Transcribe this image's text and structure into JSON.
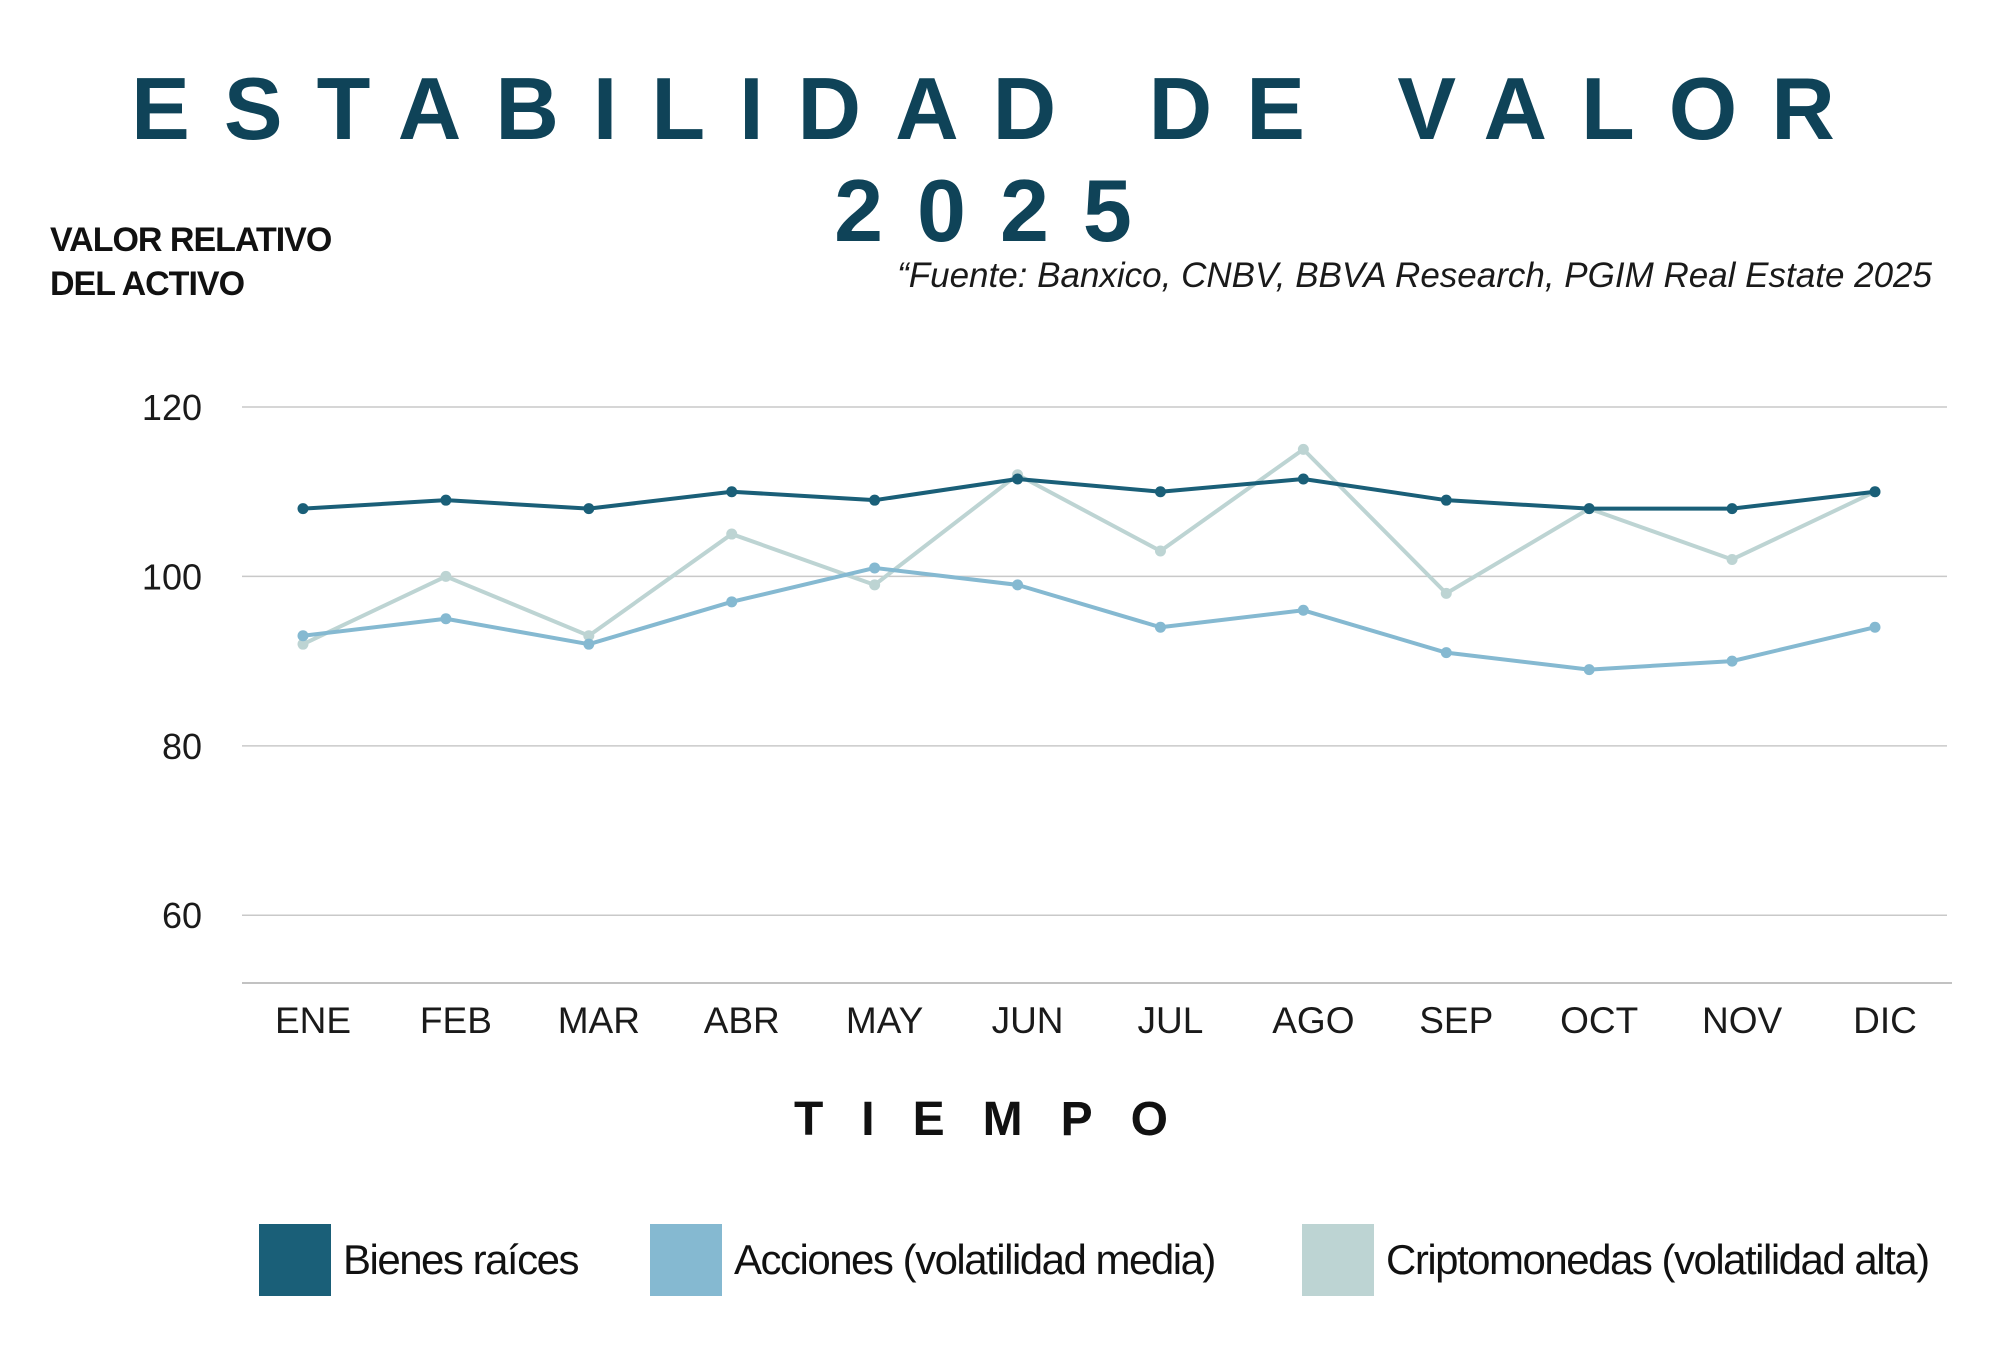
{
  "chart_data": {
    "type": "line",
    "title": "ESTABILIDAD DE VALOR 2025",
    "subtitle": "“Fuente: Banxico, CNBV, BBVA Research, PGIM Real Estate 2025",
    "ylabel_lines": [
      "VALOR RELATIVO",
      "DEL ACTIVO"
    ],
    "xlabel": "TIEMPO",
    "categories": [
      "ENE",
      "FEB",
      "MAR",
      "ABR",
      "MAY",
      "JUN",
      "JUL",
      "AGO",
      "SEP",
      "OCT",
      "NOV",
      "DIC"
    ],
    "yticks": [
      60,
      80,
      100,
      120
    ],
    "ylim": [
      52,
      120
    ],
    "grid": true,
    "legend_position": "bottom",
    "series": [
      {
        "name": "Bienes raíces",
        "color": "#1a5f78",
        "values": [
          108,
          109,
          108,
          110,
          109,
          111.5,
          110,
          111.5,
          109,
          108,
          108,
          110
        ]
      },
      {
        "name": "Acciones (volatilidad media)",
        "color": "#85b9d1",
        "values": [
          93,
          95,
          92,
          97,
          101,
          99,
          94,
          96,
          91,
          89,
          90,
          94
        ]
      },
      {
        "name": "Criptomonedas (volatilidad alta)",
        "color": "#bdd4d3",
        "values": [
          92,
          100,
          93,
          105,
          99,
          112,
          103,
          115,
          98,
          108,
          102,
          110
        ]
      }
    ]
  }
}
